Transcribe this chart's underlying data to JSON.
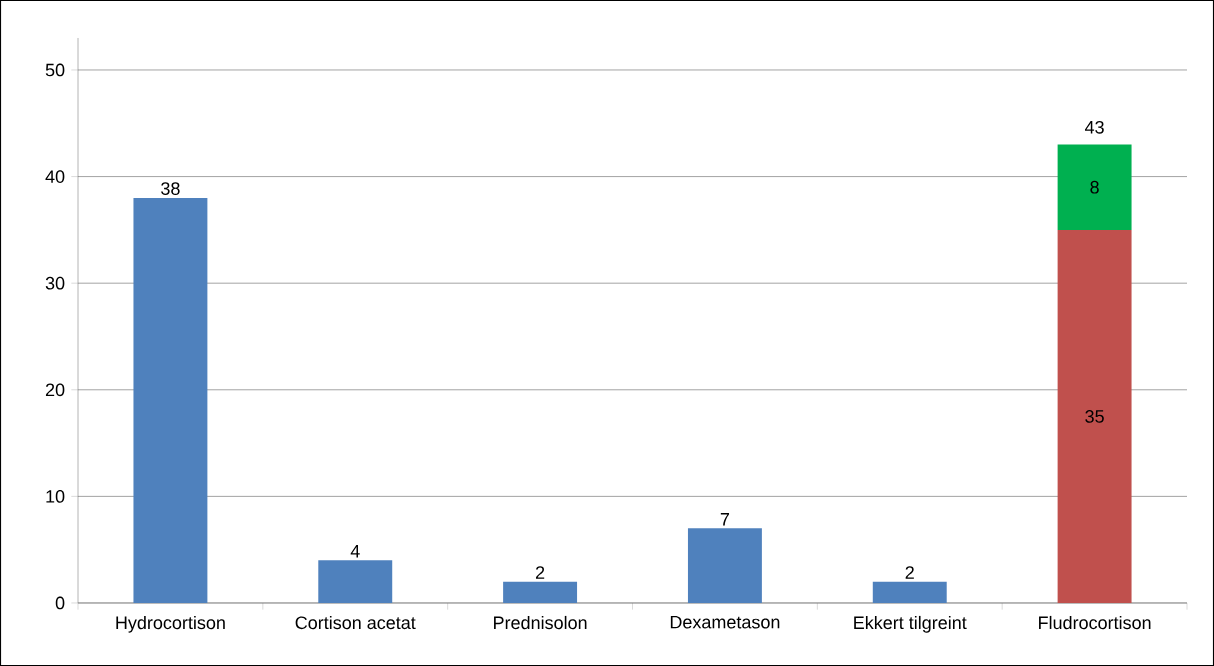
{
  "chart_data": {
    "type": "bar",
    "stacked": true,
    "categories": [
      "Hydrocortison",
      "Cortison acetat",
      "Prednisolon",
      "Dexametason",
      "Ekkert tilgreint",
      "Fludrocortison"
    ],
    "series": [
      {
        "color": "#4f81bd",
        "values": [
          38,
          4,
          2,
          7,
          2,
          null
        ]
      },
      {
        "color": "#c0504d",
        "values": [
          null,
          null,
          null,
          null,
          null,
          35
        ]
      },
      {
        "color": "#00b050",
        "values": [
          null,
          null,
          null,
          null,
          null,
          8
        ]
      }
    ],
    "totals": [
      null,
      null,
      null,
      null,
      null,
      "43"
    ],
    "data_labels": true,
    "ylim": [
      0,
      53
    ],
    "yticks": [
      0,
      10,
      20,
      30,
      40,
      50
    ],
    "grid": "y",
    "legend": false
  }
}
